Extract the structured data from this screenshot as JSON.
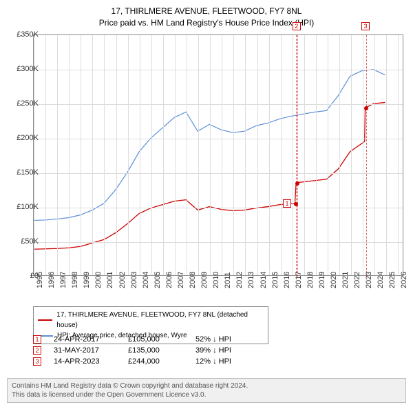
{
  "title_line1": "17, THIRLMERE AVENUE, FLEETWOOD, FY7 8NL",
  "title_line2": "Price paid vs. HM Land Registry's House Price Index (HPI)",
  "chart": {
    "type": "line",
    "xlim": [
      1995,
      2026.5
    ],
    "ylim": [
      0,
      350000
    ],
    "ytick_step": 50000,
    "yticks": [
      "£0",
      "£50K",
      "£100K",
      "£150K",
      "£200K",
      "£250K",
      "£300K",
      "£350K"
    ],
    "xticks": [
      1995,
      1996,
      1997,
      1998,
      1999,
      2000,
      2001,
      2002,
      2003,
      2004,
      2005,
      2006,
      2007,
      2008,
      2009,
      2010,
      2011,
      2012,
      2013,
      2014,
      2015,
      2016,
      2017,
      2018,
      2019,
      2020,
      2021,
      2022,
      2023,
      2024,
      2025,
      2026
    ],
    "background_color": "#ffffff",
    "grid_color": "#dddddd",
    "border_color": "#888888",
    "series": [
      {
        "name": "property",
        "label": "17, THIRLMERE AVENUE, FLEETWOOD, FY7 8NL (detached house)",
        "color": "#cc0000",
        "line_width": 1.3,
        "points": [
          [
            1995,
            38000
          ],
          [
            1996,
            38500
          ],
          [
            1997,
            39000
          ],
          [
            1998,
            40000
          ],
          [
            1999,
            42000
          ],
          [
            2000,
            47000
          ],
          [
            2001,
            52000
          ],
          [
            2002,
            62000
          ],
          [
            2003,
            75000
          ],
          [
            2004,
            90000
          ],
          [
            2005,
            98000
          ],
          [
            2006,
            103000
          ],
          [
            2007,
            108000
          ],
          [
            2008,
            110000
          ],
          [
            2009,
            95000
          ],
          [
            2010,
            100000
          ],
          [
            2011,
            96000
          ],
          [
            2012,
            94000
          ],
          [
            2013,
            95000
          ],
          [
            2014,
            98000
          ],
          [
            2015,
            100000
          ],
          [
            2016,
            103000
          ],
          [
            2017.3,
            105000
          ],
          [
            2017.4,
            135000
          ],
          [
            2018,
            136000
          ],
          [
            2019,
            138000
          ],
          [
            2020,
            140000
          ],
          [
            2021,
            155000
          ],
          [
            2022,
            180000
          ],
          [
            2023.25,
            195000
          ],
          [
            2023.3,
            244000
          ],
          [
            2024,
            250000
          ],
          [
            2025,
            252000
          ]
        ]
      },
      {
        "name": "hpi",
        "label": "HPI: Average price, detached house, Wyre",
        "color": "#5b8fd6",
        "line_width": 1.2,
        "points": [
          [
            1995,
            80000
          ],
          [
            1996,
            80500
          ],
          [
            1997,
            82000
          ],
          [
            1998,
            84000
          ],
          [
            1999,
            88000
          ],
          [
            2000,
            95000
          ],
          [
            2001,
            105000
          ],
          [
            2002,
            125000
          ],
          [
            2003,
            150000
          ],
          [
            2004,
            180000
          ],
          [
            2005,
            200000
          ],
          [
            2006,
            215000
          ],
          [
            2007,
            230000
          ],
          [
            2008,
            238000
          ],
          [
            2009,
            210000
          ],
          [
            2010,
            220000
          ],
          [
            2011,
            212000
          ],
          [
            2012,
            208000
          ],
          [
            2013,
            210000
          ],
          [
            2014,
            218000
          ],
          [
            2015,
            222000
          ],
          [
            2016,
            228000
          ],
          [
            2017,
            232000
          ],
          [
            2018,
            235000
          ],
          [
            2019,
            238000
          ],
          [
            2020,
            240000
          ],
          [
            2021,
            262000
          ],
          [
            2022,
            290000
          ],
          [
            2023,
            298000
          ],
          [
            2024,
            300000
          ],
          [
            2025,
            292000
          ]
        ]
      }
    ],
    "markers": [
      {
        "n": "1",
        "x": 2017.31,
        "y": 105000,
        "box_y": null
      },
      {
        "n": "2",
        "x": 2017.41,
        "y": 135000,
        "box_top": true
      },
      {
        "n": "3",
        "x": 2023.29,
        "y": 244000,
        "box_top": true
      }
    ]
  },
  "legend": {
    "rows": [
      {
        "color": "#cc0000",
        "label": "17, THIRLMERE AVENUE, FLEETWOOD, FY7 8NL (detached house)"
      },
      {
        "color": "#5b8fd6",
        "label": "HPI: Average price, detached house, Wyre"
      }
    ]
  },
  "transactions": [
    {
      "n": "1",
      "date": "24-APR-2017",
      "price": "£105,000",
      "delta": "52% ↓ HPI"
    },
    {
      "n": "2",
      "date": "31-MAY-2017",
      "price": "£135,000",
      "delta": "39% ↓ HPI"
    },
    {
      "n": "3",
      "date": "14-APR-2023",
      "price": "£244,000",
      "delta": "12% ↓ HPI"
    }
  ],
  "footer": {
    "line1": "Contains HM Land Registry data © Crown copyright and database right 2024.",
    "line2": "This data is licensed under the Open Government Licence v3.0."
  }
}
